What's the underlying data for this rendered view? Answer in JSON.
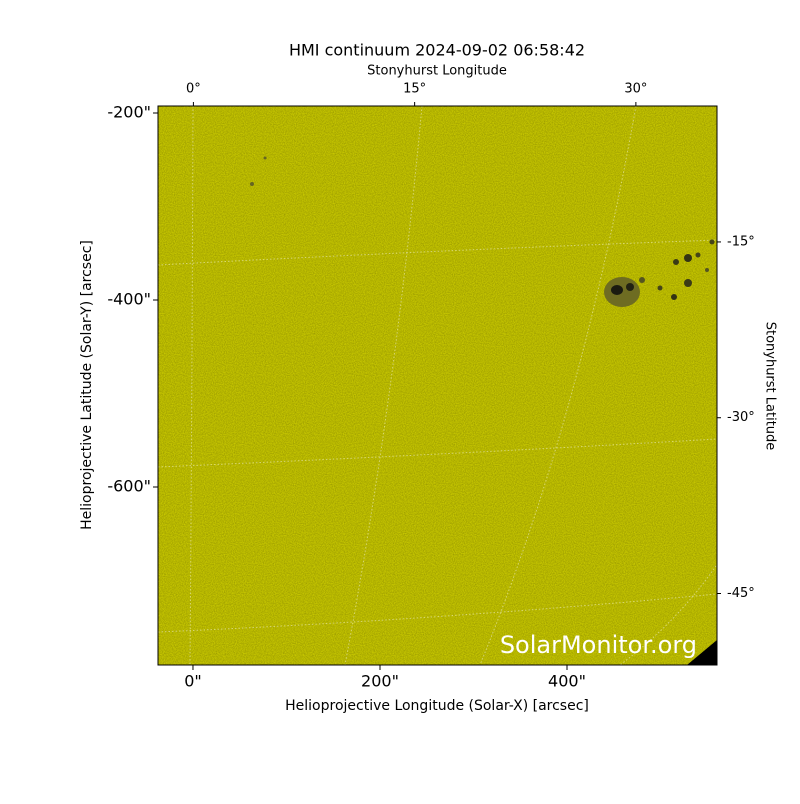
{
  "chart_data": {
    "type": "image",
    "title": "HMI continuum 2024-09-02 06:58:42",
    "x_label": "Helioprojective Longitude (Solar-X) [arcsec]",
    "y_label": "Helioprojective Latitude (Solar-Y) [arcsec]",
    "x2_label": "Stonyhurst Longitude",
    "y2_label": "Stonyhurst Latitude",
    "watermark": "SolarMonitor.org",
    "color": "#c8c800",
    "xlim": [
      -37.4,
      560.4
    ],
    "ylim": [
      -790.4,
      -192.5
    ],
    "xticks": [
      {
        "value": 0,
        "label": "0\""
      },
      {
        "value": 200,
        "label": "200\""
      },
      {
        "value": 400,
        "label": "400\""
      }
    ],
    "yticks": [
      {
        "value": -200,
        "label": "-200\""
      },
      {
        "value": -400,
        "label": "-400\""
      },
      {
        "value": -600,
        "label": "-600\""
      }
    ],
    "x2lim": [
      -2.4,
      35.5
    ],
    "x2ticks": [
      {
        "value": 0,
        "label": "0°"
      },
      {
        "value": 15,
        "label": "15°"
      },
      {
        "value": 30,
        "label": "30°"
      }
    ],
    "y2lim": [
      -51.1,
      -3.4
    ],
    "y2ticks": [
      {
        "value": -15,
        "label": "-15°"
      },
      {
        "value": -30,
        "label": "-30°"
      },
      {
        "value": -45,
        "label": "-45°"
      }
    ]
  }
}
